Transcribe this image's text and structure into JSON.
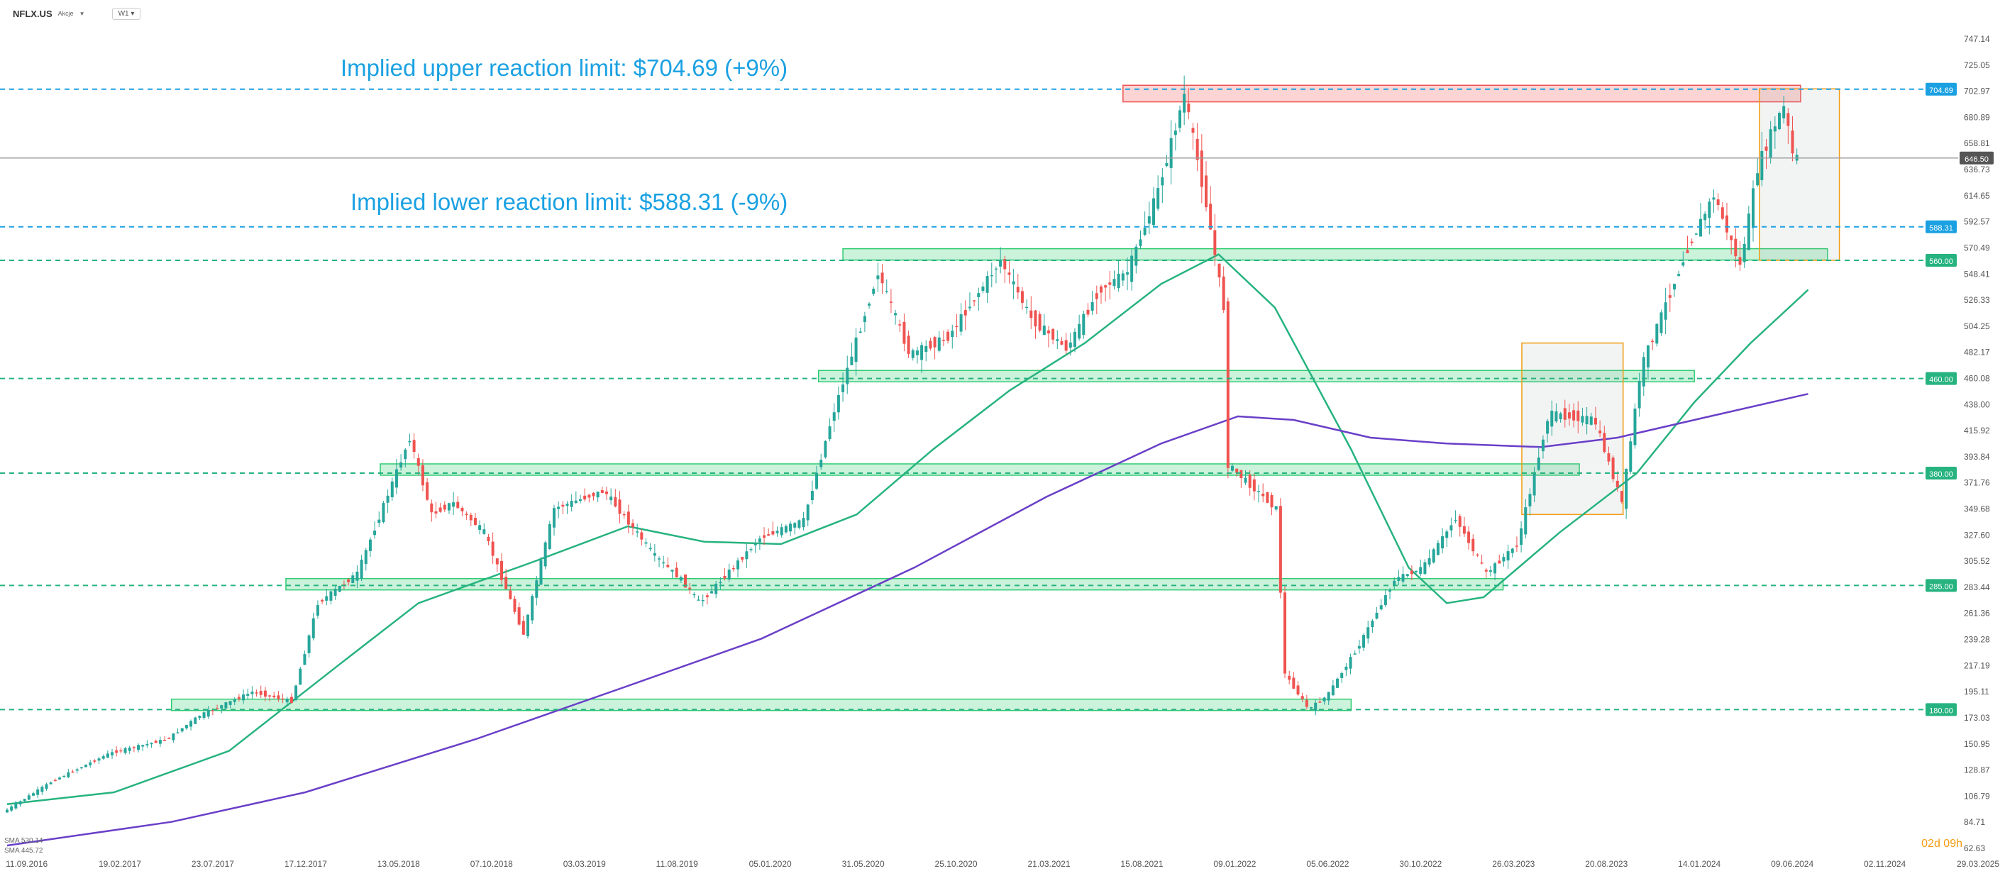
{
  "header": {
    "symbol": "NFLX.US",
    "subtitle": "Akcje",
    "timeframe": "W1"
  },
  "legend": {
    "sma1": "SMA 530.14",
    "sma2": "SMA 445.72"
  },
  "countdown": "02d 09h",
  "colors": {
    "up": "#26a69a",
    "down": "#ef5350",
    "blue": "#1ba1e2",
    "green_zone": "#2ecc71",
    "sma_fast": "#26b37f",
    "sma_slow": "#6a3fc8",
    "orange": "#f39c12",
    "grid_text": "#555555"
  },
  "chart_data": {
    "type": "candlestick",
    "symbol": "NFLX.US",
    "timeframe": "W1",
    "ylim": [
      62.63,
      747.14
    ],
    "y_tick_labels": [
      "747.14",
      "725.05",
      "702.97",
      "680.89",
      "658.81",
      "636.73",
      "614.65",
      "592.57",
      "570.49",
      "548.41",
      "526.33",
      "504.25",
      "482.17",
      "460.08",
      "438.00",
      "415.92",
      "393.84",
      "371.76",
      "349.68",
      "327.60",
      "305.52",
      "283.44",
      "261.36",
      "239.28",
      "217.19",
      "195.11",
      "173.03",
      "150.95",
      "128.87",
      "106.79",
      "84.71",
      "62.63"
    ],
    "x_tick_labels": [
      "11.09.2016",
      "19.02.2017",
      "23.07.2017",
      "17.12.2017",
      "13.05.2018",
      "07.10.2018",
      "03.03.2019",
      "11.08.2019",
      "05.01.2020",
      "31.05.2020",
      "25.10.2020",
      "21.03.2021",
      "15.08.2021",
      "09.01.2022",
      "05.06.2022",
      "30.10.2022",
      "26.03.2023",
      "20.08.2023",
      "14.01.2024",
      "09.06.2024",
      "02.11.2024",
      "29.03.2025"
    ],
    "current_price": 646.5,
    "current_price_label": "646.50",
    "annotations": [
      {
        "text": "Implied upper reaction limit: $704.69 (+9%)",
        "price": 704.69
      },
      {
        "text": "Implied lower reaction limit: $588.31 (-9%)",
        "price": 588.31
      }
    ],
    "levels": [
      {
        "price": 704.69,
        "label": "704.69",
        "color": "blue"
      },
      {
        "price": 588.31,
        "label": "588.31",
        "color": "blue"
      },
      {
        "price": 560,
        "label": "560.00",
        "color": "green"
      },
      {
        "price": 460,
        "label": "460.00",
        "color": "green"
      },
      {
        "price": 380,
        "label": "380.00",
        "color": "green"
      },
      {
        "price": 285,
        "label": "285.00",
        "color": "green"
      },
      {
        "price": 180,
        "label": "180.00",
        "color": "green"
      }
    ],
    "support_zones": [
      {
        "x0": "2020-05-10",
        "x1": "2024-09-01",
        "center": 565
      },
      {
        "x0": "2020-04-01",
        "x1": "2024-02-01",
        "center": 462
      },
      {
        "x0": "2018-05-01",
        "x1": "2023-08-01",
        "center": 383
      },
      {
        "x0": "2017-12-01",
        "x1": "2023-04-01",
        "center": 286
      },
      {
        "x0": "2017-06-01",
        "x1": "2022-08-01",
        "center": 184
      }
    ],
    "resistance_zone": {
      "x0": "2021-08-01",
      "x1": "2024-07-20",
      "low": 694,
      "high": 708
    },
    "ranges": [
      {
        "x0": "2023-05-01",
        "x1": "2023-10-10",
        "low": 345,
        "high": 490
      },
      {
        "x0": "2024-05-15",
        "x1": "2024-09-20",
        "low": 560,
        "high": 705
      }
    ],
    "sma_fast": {
      "label": "SMA 530.14",
      "points": [
        [
          "2016-09-11",
          100
        ],
        [
          "2017-03-01",
          110
        ],
        [
          "2017-09-01",
          145
        ],
        [
          "2018-03-01",
          220
        ],
        [
          "2018-07-01",
          270
        ],
        [
          "2019-01-01",
          305
        ],
        [
          "2019-06-01",
          335
        ],
        [
          "2019-10-01",
          322
        ],
        [
          "2020-02-01",
          320
        ],
        [
          "2020-06-01",
          345
        ],
        [
          "2020-10-01",
          400
        ],
        [
          "2021-02-01",
          450
        ],
        [
          "2021-06-01",
          490
        ],
        [
          "2021-10-01",
          540
        ],
        [
          "2022-01-01",
          565
        ],
        [
          "2022-04-01",
          520
        ],
        [
          "2022-08-01",
          400
        ],
        [
          "2022-11-01",
          300
        ],
        [
          "2023-01-01",
          270
        ],
        [
          "2023-03-01",
          275
        ],
        [
          "2023-07-01",
          330
        ],
        [
          "2023-11-01",
          380
        ],
        [
          "2024-02-01",
          440
        ],
        [
          "2024-05-01",
          490
        ],
        [
          "2024-08-01",
          535
        ]
      ]
    },
    "sma_slow": {
      "label": "SMA 445.72",
      "points": [
        [
          "2016-09-11",
          65
        ],
        [
          "2017-06-01",
          85
        ],
        [
          "2018-01-01",
          110
        ],
        [
          "2018-10-01",
          155
        ],
        [
          "2019-06-01",
          200
        ],
        [
          "2020-01-01",
          240
        ],
        [
          "2020-09-01",
          300
        ],
        [
          "2021-04-01",
          360
        ],
        [
          "2021-10-01",
          405
        ],
        [
          "2022-02-01",
          428
        ],
        [
          "2022-05-01",
          425
        ],
        [
          "2022-09-01",
          410
        ],
        [
          "2023-01-01",
          405
        ],
        [
          "2023-06-01",
          402
        ],
        [
          "2023-10-01",
          410
        ],
        [
          "2024-02-01",
          425
        ],
        [
          "2024-08-01",
          447
        ]
      ]
    },
    "price_anchors": [
      [
        "2016-09-11",
        93
      ],
      [
        "2016-12-01",
        120
      ],
      [
        "2017-03-01",
        143
      ],
      [
        "2017-06-01",
        155
      ],
      [
        "2017-07-23",
        175
      ],
      [
        "2017-10-15",
        195
      ],
      [
        "2017-12-17",
        187
      ],
      [
        "2018-01-28",
        270
      ],
      [
        "2018-04-01",
        295
      ],
      [
        "2018-06-24",
        410
      ],
      [
        "2018-07-29",
        345
      ],
      [
        "2018-09-01",
        355
      ],
      [
        "2018-10-21",
        330
      ],
      [
        "2018-12-23",
        244
      ],
      [
        "2019-02-10",
        350
      ],
      [
        "2019-05-01",
        365
      ],
      [
        "2019-07-21",
        310
      ],
      [
        "2019-09-01",
        290
      ],
      [
        "2019-10-01",
        270
      ],
      [
        "2020-01-05",
        325
      ],
      [
        "2020-03-15",
        340
      ],
      [
        "2020-05-01",
        430
      ],
      [
        "2020-07-12",
        550
      ],
      [
        "2020-09-01",
        480
      ],
      [
        "2020-11-01",
        495
      ],
      [
        "2021-01-24",
        560
      ],
      [
        "2021-03-15",
        510
      ],
      [
        "2021-05-10",
        485
      ],
      [
        "2021-07-01",
        535
      ],
      [
        "2021-08-15",
        550
      ],
      [
        "2021-10-01",
        615
      ],
      [
        "2021-11-14",
        700
      ],
      [
        "2021-12-20",
        605
      ],
      [
        "2022-01-16",
        520
      ],
      [
        "2022-01-23",
        387
      ],
      [
        "2022-04-10",
        350
      ],
      [
        "2022-04-24",
        210
      ],
      [
        "2022-06-01",
        180
      ],
      [
        "2022-07-01",
        192
      ],
      [
        "2022-08-21",
        235
      ],
      [
        "2022-10-16",
        290
      ],
      [
        "2022-12-01",
        300
      ],
      [
        "2023-01-22",
        342
      ],
      [
        "2023-03-12",
        295
      ],
      [
        "2023-05-01",
        320
      ],
      [
        "2023-06-20",
        430
      ],
      [
        "2023-09-01",
        425
      ],
      [
        "2023-10-15",
        355
      ],
      [
        "2023-11-15",
        470
      ],
      [
        "2024-01-28",
        570
      ],
      [
        "2024-03-10",
        615
      ],
      [
        "2024-04-21",
        555
      ],
      [
        "2024-05-20",
        640
      ],
      [
        "2024-06-20",
        680
      ],
      [
        "2024-07-01",
        690
      ],
      [
        "2024-07-15",
        646.5
      ]
    ]
  }
}
